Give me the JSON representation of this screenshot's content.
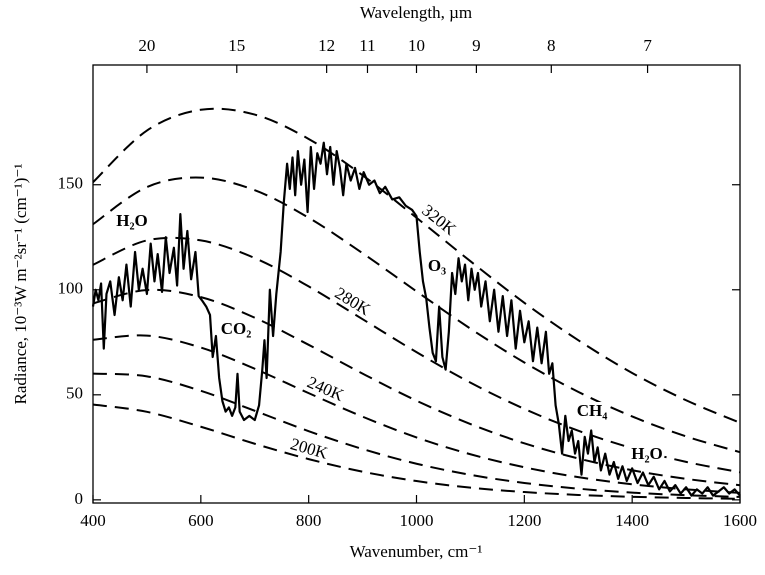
{
  "chart_data": {
    "type": "line",
    "xlabel": "Wavenumber, cm⁻¹",
    "x2label": "Wavelength, µm",
    "ylabel": "Radiance, 10⁻³W m⁻²sr⁻¹ (cm⁻¹)⁻¹",
    "xlim": [
      400,
      1600
    ],
    "ylim": [
      -1.5,
      207
    ],
    "xticks": [
      400,
      600,
      800,
      1000,
      1200,
      1400,
      1600
    ],
    "yticks": [
      0,
      50,
      100,
      150
    ],
    "x2ticks": [
      20,
      15,
      12,
      11,
      10,
      9,
      8,
      7
    ],
    "annotations": [
      "H₂O",
      "CO₂",
      "O₃",
      "CH₄",
      "H₂O"
    ],
    "series": [
      {
        "style": "solid",
        "color": "#000000",
        "x": [
          400,
          405,
          410,
          415,
          420,
          425,
          432,
          440,
          448,
          455,
          462,
          470,
          478,
          485,
          492,
          500,
          507,
          514,
          520,
          528,
          535,
          542,
          550,
          556,
          562,
          568,
          575,
          582,
          590,
          596,
          602,
          610,
          617,
          622,
          628,
          634,
          640,
          646,
          652,
          658,
          664,
          668,
          672,
          680,
          690,
          700,
          708,
          714,
          718,
          722,
          728,
          734,
          740,
          748,
          754,
          760,
          765,
          770,
          775,
          780,
          786,
          792,
          798,
          804,
          810,
          816,
          822,
          828,
          834,
          840,
          846,
          852,
          858,
          864,
          870,
          878,
          886,
          894,
          902,
          912,
          922,
          932,
          942,
          955,
          968,
          980,
          992,
          1000,
          1006,
          1012,
          1018,
          1024,
          1030,
          1036,
          1042,
          1048,
          1054,
          1060,
          1066,
          1072,
          1078,
          1084,
          1090,
          1096,
          1102,
          1108,
          1114,
          1120,
          1128,
          1136,
          1144,
          1152,
          1160,
          1168,
          1176,
          1184,
          1192,
          1200,
          1208,
          1216,
          1224,
          1232,
          1240,
          1246,
          1252,
          1258,
          1264,
          1270,
          1276,
          1282,
          1288,
          1294,
          1300,
          1306,
          1312,
          1318,
          1324,
          1330,
          1336,
          1342,
          1350,
          1358,
          1366,
          1374,
          1382,
          1390,
          1400,
          1410,
          1420,
          1430,
          1440,
          1450,
          1460,
          1470,
          1480,
          1490,
          1500,
          1510,
          1520,
          1530,
          1540,
          1550,
          1560,
          1570,
          1580,
          1590,
          1600
        ],
        "values": [
          92,
          100,
          95,
          103,
          72,
          98,
          104,
          88,
          106,
          95,
          112,
          92,
          118,
          100,
          110,
          98,
          122,
          104,
          117,
          99,
          125,
          108,
          120,
          102,
          136,
          110,
          128,
          105,
          118,
          97,
          95,
          92,
          88,
          68,
          78,
          58,
          47,
          42,
          44,
          40,
          44,
          60,
          42,
          38,
          40,
          38,
          45,
          62,
          76,
          58,
          100,
          78,
          98,
          118,
          142,
          160,
          148,
          163,
          145,
          166,
          150,
          162,
          137,
          168,
          148,
          165,
          160,
          170,
          155,
          168,
          150,
          166,
          158,
          145,
          160,
          152,
          158,
          148,
          156,
          150,
          152,
          146,
          149,
          143,
          144,
          140,
          138,
          135,
          118,
          104,
          96,
          82,
          70,
          66,
          92,
          68,
          62,
          80,
          108,
          98,
          115,
          104,
          112,
          95,
          110,
          100,
          108,
          92,
          104,
          85,
          100,
          80,
          97,
          78,
          95,
          72,
          90,
          75,
          85,
          66,
          82,
          65,
          80,
          60,
          65,
          45,
          36,
          22,
          40,
          28,
          33,
          22,
          28,
          12,
          30,
          22,
          33,
          18,
          25,
          14,
          22,
          12,
          18,
          10,
          16,
          9,
          15,
          8,
          13,
          7,
          11,
          5,
          9,
          4,
          7,
          3,
          6,
          2,
          5,
          3,
          6,
          2,
          4,
          6,
          3,
          5,
          2
        ]
      },
      {
        "name": "320K",
        "style": "dashed",
        "color": "#000000",
        "x": [
          400,
          500,
          600,
          700,
          800,
          900,
          1000,
          1100,
          1200,
          1300,
          1400,
          1500,
          1600
        ],
        "values": [
          151.2,
          175.8,
          185.7,
          183.4,
          171.8,
          154.5,
          134.3,
          113.6,
          93.8,
          76.0,
          60.4,
          47.4,
          36.7
        ]
      },
      {
        "style": "dashed",
        "color": "#000000",
        "x": [
          400,
          500,
          600,
          700,
          800,
          900,
          1000,
          1100,
          1200,
          1300,
          1400,
          1500,
          1600
        ],
        "values": [
          131.2,
          148.9,
          153.4,
          147.4,
          134.3,
          117.4,
          99.25,
          81.5,
          65.4,
          51.4,
          39.7,
          30.2,
          22.7
        ]
      },
      {
        "name": "280K",
        "style": "dashed",
        "color": "#000000",
        "x": [
          400,
          500,
          600,
          700,
          800,
          900,
          1000,
          1100,
          1200,
          1300,
          1400,
          1500,
          1600
        ],
        "values": [
          111.9,
          123.5,
          123.5,
          115.1,
          101.6,
          86.0,
          70.3,
          55.8,
          43.3,
          32.9,
          24.6,
          18.07,
          13.12
        ]
      },
      {
        "style": "dashed",
        "color": "#000000",
        "x": [
          400,
          500,
          600,
          700,
          800,
          900,
          1000,
          1100,
          1200,
          1300,
          1400,
          1500,
          1600
        ],
        "values": [
          93.5,
          99.9,
          96.5,
          86.7,
          73.8,
          60.1,
          47.2,
          36.1,
          26.9,
          19.7,
          14.1,
          9.99,
          6.97
        ]
      },
      {
        "name": "240K",
        "style": "dashed",
        "color": "#000000",
        "x": [
          400,
          500,
          600,
          700,
          800,
          900,
          1000,
          1100,
          1200,
          1300,
          1400,
          1500,
          1600
        ],
        "values": [
          76.2,
          78.2,
          72.5,
          62.4,
          50.8,
          39.6,
          29.7,
          21.7,
          15.5,
          10.8,
          7.41,
          5.0,
          3.33
        ]
      },
      {
        "style": "dashed",
        "color": "#000000",
        "x": [
          400,
          500,
          600,
          700,
          800,
          900,
          1000,
          1100,
          1200,
          1300,
          1400,
          1500,
          1600
        ],
        "values": [
          60.1,
          58.8,
          51.9,
          42.4,
          32.7,
          24.2,
          17.2,
          11.9,
          8.04,
          5.32,
          3.45,
          2.21,
          1.39
        ]
      },
      {
        "name": "200K",
        "style": "dashed",
        "color": "#000000",
        "x": [
          400,
          500,
          600,
          700,
          800,
          900,
          1000,
          1100,
          1200,
          1300,
          1400,
          1500,
          1600
        ],
        "values": [
          45.4,
          41.9,
          34.8,
          26.7,
          19.4,
          13.4,
          8.95,
          5.8,
          3.71,
          2.33,
          1.45,
          0.89,
          0.49
        ]
      }
    ]
  }
}
